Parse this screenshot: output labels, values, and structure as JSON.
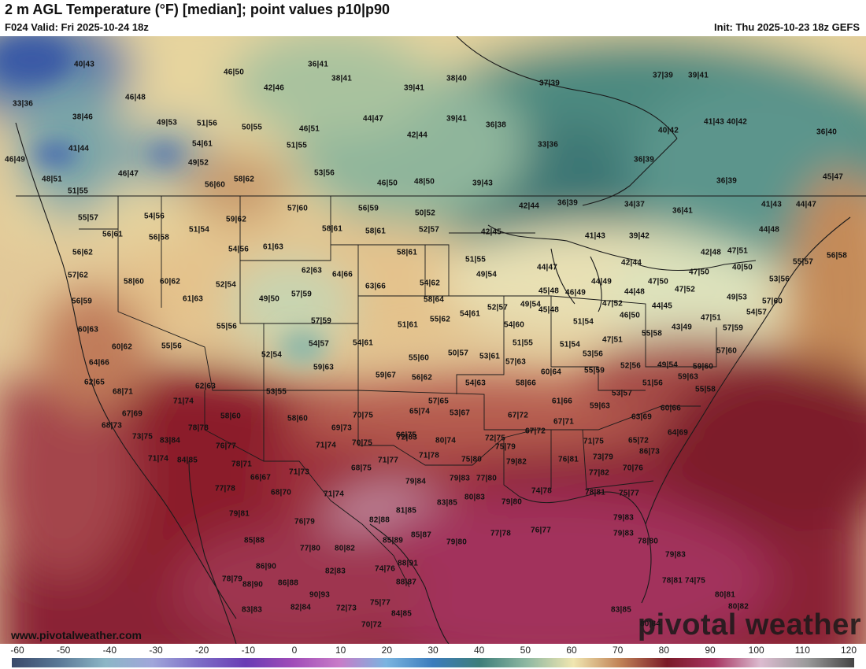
{
  "header": {
    "title": "2 m AGL Temperature (°F) [median]; point values p10|p90",
    "valid": "F024 Valid: Fri 2025-10-24 18z",
    "init": "Init: Thu 2025-10-23 18z GEFS"
  },
  "map": {
    "watermark": "pivotal weather",
    "site_url": "www.pivotalweather.com",
    "point_values": [
      "40|43",
      "46|50",
      "36|41",
      "38|41",
      "38|40",
      "37|39",
      "37|39",
      "39|41",
      "33|36",
      "46|48",
      "42|46",
      "39|41",
      "38|46",
      "49|53",
      "51|56",
      "50|55",
      "46|51",
      "44|47",
      "39|41",
      "36|38",
      "40|42",
      "41|43",
      "40|42",
      "36|40",
      "41|44",
      "54|61",
      "51|55",
      "42|44",
      "33|36",
      "46|49",
      "49|52",
      "46|47",
      "53|56",
      "36|39",
      "48|51",
      "51|55",
      "56|60",
      "58|62",
      "46|50",
      "48|50",
      "39|43",
      "36|39",
      "45|47",
      "57|60",
      "56|59",
      "50|52",
      "42|44",
      "36|39",
      "34|37",
      "36|41",
      "41|43",
      "44|47",
      "55|57",
      "54|56",
      "59|62",
      "58|61",
      "58|61",
      "52|57",
      "42|45",
      "41|43",
      "39|42",
      "44|48",
      "56|61",
      "51|54",
      "56|58",
      "54|56",
      "61|63",
      "58|61",
      "51|55",
      "44|47",
      "42|44",
      "42|48",
      "47|51",
      "56|58",
      "56|62",
      "62|63",
      "64|66",
      "49|54",
      "40|50",
      "55|57",
      "57|62",
      "58|60",
      "60|62",
      "52|54",
      "49|50",
      "57|59",
      "63|66",
      "54|62",
      "45|48",
      "46|49",
      "44|49",
      "47|50",
      "47|52",
      "47|50",
      "53|56",
      "56|59",
      "61|63",
      "58|64",
      "52|57",
      "49|54",
      "45|48",
      "47|52",
      "44|48",
      "44|45",
      "49|53",
      "57|60",
      "55|56",
      "57|59",
      "51|61",
      "55|62",
      "54|61",
      "54|60",
      "51|54",
      "46|50",
      "43|49",
      "47|51",
      "54|57",
      "60|63",
      "60|62",
      "55|56",
      "54|57",
      "54|61",
      "55|60",
      "51|55",
      "51|54",
      "47|51",
      "55|58",
      "57|59",
      "64|66",
      "52|54",
      "59|63",
      "50|57",
      "53|61",
      "57|63",
      "53|56",
      "49|54",
      "57|60",
      "62|65",
      "59|67",
      "56|62",
      "60|64",
      "55|59",
      "52|56",
      "59|60",
      "68|71",
      "62|63",
      "53|55",
      "54|63",
      "58|66",
      "51|56",
      "59|63",
      "55|58",
      "71|74",
      "57|65",
      "61|66",
      "53|57",
      "67|69",
      "58|60",
      "58|60",
      "70|75",
      "65|74",
      "53|67",
      "67|72",
      "59|63",
      "63|69",
      "60|66",
      "68|73",
      "78|78",
      "69|73",
      "66|75",
      "67|72",
      "67|71",
      "64|69",
      "73|75",
      "83|84",
      "72|83",
      "80|74",
      "72|75",
      "71|75",
      "65|72",
      "76|77",
      "71|74",
      "70|75",
      "75|79",
      "86|73",
      "71|74",
      "84|85",
      "78|71",
      "71|77",
      "71|78",
      "75|80",
      "79|82",
      "76|81",
      "73|79",
      "70|76",
      "66|67",
      "71|73",
      "68|75",
      "79|84",
      "79|83",
      "77|80",
      "77|82",
      "77|78",
      "68|70",
      "71|74",
      "74|78",
      "78|81",
      "75|77",
      "81|85",
      "83|85",
      "80|83",
      "79|80",
      "79|81",
      "76|79",
      "82|88",
      "79|83",
      "85|88",
      "77|80",
      "85|89",
      "85|87",
      "79|80",
      "77|78",
      "76|77",
      "79|83",
      "78|80",
      "80|82",
      "86|90",
      "74|76",
      "88|91",
      "79|83",
      "78|79",
      "88|87",
      "82|83",
      "88|90",
      "78|81",
      "86|88",
      "90|93",
      "75|77",
      "74|75",
      "80|81",
      "83|83",
      "82|84",
      "72|73",
      "84|85",
      "80|82",
      "70|72",
      "83|85",
      "80|84"
    ]
  },
  "colorbar": {
    "ticks": [
      "-60",
      "-50",
      "-40",
      "-30",
      "-20",
      "-10",
      "0",
      "10",
      "20",
      "30",
      "40",
      "50",
      "60",
      "70",
      "80",
      "90",
      "100",
      "110",
      "120"
    ],
    "stops": [
      {
        "t": "-60",
        "color": "#3a4a6a"
      },
      {
        "t": "-50",
        "color": "#5a7896"
      },
      {
        "t": "-40",
        "color": "#8cb6c6"
      },
      {
        "t": "-30",
        "color": "#a0a6da"
      },
      {
        "t": "-20",
        "color": "#7c6cc6"
      },
      {
        "t": "-10",
        "color": "#6a3cb4"
      },
      {
        "t": "0",
        "color": "#a04cb8"
      },
      {
        "t": "10",
        "color": "#c87cc8"
      },
      {
        "t": "20",
        "color": "#7ab4e0"
      },
      {
        "t": "30",
        "color": "#3c7cbc"
      },
      {
        "t": "40",
        "color": "#3e7e7a"
      },
      {
        "t": "50",
        "color": "#8eb8a2"
      },
      {
        "t": "60",
        "color": "#f0e6b0"
      },
      {
        "t": "70",
        "color": "#c08256"
      },
      {
        "t": "80",
        "color": "#7a1a28"
      },
      {
        "t": "90",
        "color": "#a63460"
      },
      {
        "t": "100",
        "color": "#dcbcd0"
      },
      {
        "t": "110",
        "color": "#9a9a9a"
      },
      {
        "t": "120",
        "color": "#444444"
      }
    ]
  }
}
